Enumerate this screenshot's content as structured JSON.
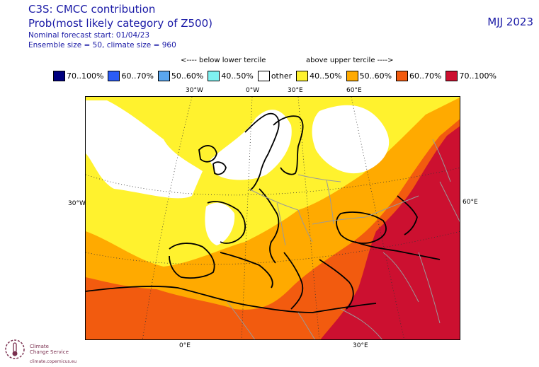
{
  "header": {
    "title": "C3S: CMCC contribution",
    "subtitle": "Prob(most likely category of Z500)",
    "forecast_start": "Nominal forecast start: 01/04/23",
    "ensemble": "Ensemble size = 50, climate size = 960",
    "season": "MJJ 2023"
  },
  "tercile_labels": {
    "below": "<---- below lower tercile",
    "above": "above upper tercile ---->"
  },
  "legend": [
    {
      "label": "70..100%",
      "color": "#00007f"
    },
    {
      "label": "60..70%",
      "color": "#2b5cf6"
    },
    {
      "label": "50..60%",
      "color": "#5aa6ee"
    },
    {
      "label": "40..50%",
      "color": "#7ff1f0"
    },
    {
      "label": "other",
      "color": "#ffffff"
    },
    {
      "label": "40..50%",
      "color": "#fff22e"
    },
    {
      "label": "50..60%",
      "color": "#ffaa00"
    },
    {
      "label": "60..70%",
      "color": "#f25b0f"
    },
    {
      "label": "70..100%",
      "color": "#cc1030"
    }
  ],
  "coords": {
    "top": [
      "30°W",
      "0°W",
      "30°E",
      "60°E"
    ],
    "left": "30°W",
    "right": "60°E",
    "bottom": [
      "0°E",
      "30°E"
    ]
  },
  "logo": {
    "name_line1": "Climate",
    "name_line2": "Change Service",
    "url": "climate.copernicus.eu"
  }
}
